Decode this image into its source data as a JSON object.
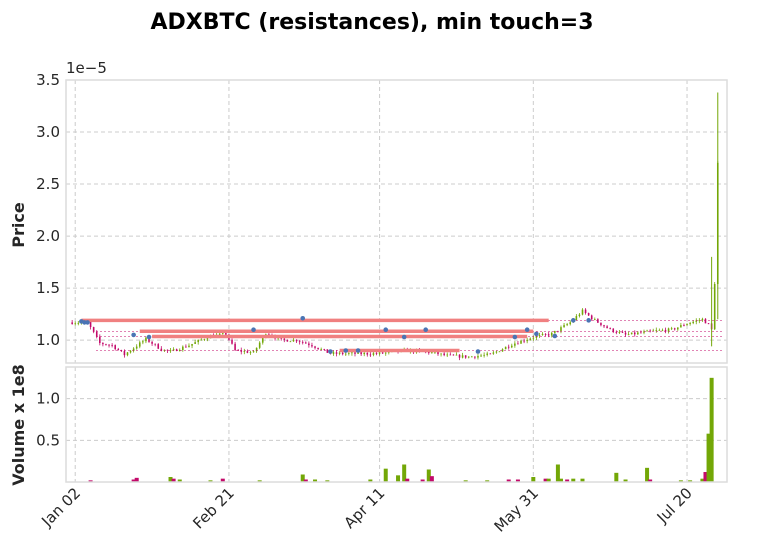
{
  "chart_data": {
    "type": "candlestick",
    "title": "ADXBTC (resistances), min touch=3",
    "price_panel": {
      "ylabel": "Price",
      "offset_label": "1e−5",
      "ylim": [
        0.78,
        3.5
      ],
      "yticks": [
        1.0,
        1.5,
        2.0,
        2.5,
        3.0,
        3.5
      ],
      "ytick_labels": [
        "1.0",
        "1.5",
        "2.0",
        "2.5",
        "3.0",
        "3.5"
      ],
      "unit_scale": "1e-5 BTC",
      "grid": true
    },
    "volume_panel": {
      "ylabel": "Volume x 1e8",
      "ylim": [
        0,
        1.38
      ],
      "yticks": [
        0.5,
        1.0
      ],
      "ytick_labels": [
        "0.5",
        "1.0"
      ]
    },
    "x_axis": {
      "start_date": "2018-12-30",
      "end_date": "2019-08-02",
      "tick_dates": [
        "2019-01-02",
        "2019-02-21",
        "2019-04-11",
        "2019-05-31",
        "2019-07-20"
      ],
      "tick_labels": [
        "Jan 02",
        "Feb 21",
        "Apr 11",
        "May 31",
        "Jul 20"
      ]
    },
    "colors": {
      "up": "#73a707",
      "down": "#c30a6a",
      "resistance": "#f08080",
      "touch_marker": "#4a74b4",
      "grid": "#cccccc"
    },
    "resistance_lines": [
      {
        "start": "2019-01-04",
        "end": "2019-06-05",
        "level": 1.19
      },
      {
        "start": "2019-01-23",
        "end": "2019-05-31",
        "level": 1.085
      },
      {
        "start": "2019-01-27",
        "end": "2019-05-29",
        "level": 1.035
      },
      {
        "start": "2019-03-29",
        "end": "2019-05-07",
        "level": 0.9
      }
    ],
    "touch_points": [
      {
        "date": "2019-01-04",
        "price": 1.18
      },
      {
        "date": "2019-01-05",
        "price": 1.17
      },
      {
        "date": "2019-01-06",
        "price": 1.17
      },
      {
        "date": "2019-01-21",
        "price": 1.05
      },
      {
        "date": "2019-01-26",
        "price": 1.03
      },
      {
        "date": "2019-03-01",
        "price": 1.1
      },
      {
        "date": "2019-03-17",
        "price": 1.21
      },
      {
        "date": "2019-03-26",
        "price": 0.89
      },
      {
        "date": "2019-03-31",
        "price": 0.9
      },
      {
        "date": "2019-04-04",
        "price": 0.9
      },
      {
        "date": "2019-04-13",
        "price": 1.1
      },
      {
        "date": "2019-04-19",
        "price": 1.03
      },
      {
        "date": "2019-04-26",
        "price": 1.1
      },
      {
        "date": "2019-05-13",
        "price": 0.89
      },
      {
        "date": "2019-05-25",
        "price": 1.03
      },
      {
        "date": "2019-05-29",
        "price": 1.1
      },
      {
        "date": "2019-06-01",
        "price": 1.06
      },
      {
        "date": "2019-06-07",
        "price": 1.04
      },
      {
        "date": "2019-06-13",
        "price": 1.19
      },
      {
        "date": "2019-06-18",
        "price": 1.19
      }
    ],
    "price_path": [
      [
        "2019-01-01",
        1.17
      ],
      [
        "2019-01-06",
        1.17
      ],
      [
        "2019-01-10",
        0.97
      ],
      [
        "2019-01-14",
        0.95
      ],
      [
        "2019-01-18",
        0.86
      ],
      [
        "2019-01-25",
        1.01
      ],
      [
        "2019-01-30",
        0.91
      ],
      [
        "2019-02-02",
        0.89
      ],
      [
        "2019-02-08",
        0.95
      ],
      [
        "2019-02-14",
        1.03
      ],
      [
        "2019-02-20",
        1.06
      ],
      [
        "2019-02-23",
        0.9
      ],
      [
        "2019-03-01",
        0.88
      ],
      [
        "2019-03-05",
        1.07
      ],
      [
        "2019-03-10",
        1.0
      ],
      [
        "2019-03-15",
        1.0
      ],
      [
        "2019-03-20",
        0.95
      ],
      [
        "2019-03-26",
        0.87
      ],
      [
        "2019-04-04",
        0.87
      ],
      [
        "2019-04-11",
        0.87
      ],
      [
        "2019-04-20",
        0.9
      ],
      [
        "2019-04-28",
        0.88
      ],
      [
        "2019-05-03",
        0.85
      ],
      [
        "2019-05-10",
        0.84
      ],
      [
        "2019-05-17",
        0.86
      ],
      [
        "2019-05-24",
        0.96
      ],
      [
        "2019-05-31",
        1.03
      ],
      [
        "2019-06-06",
        1.06
      ],
      [
        "2019-06-12",
        1.17
      ],
      [
        "2019-06-16",
        1.28
      ],
      [
        "2019-06-20",
        1.19
      ],
      [
        "2019-06-25",
        1.1
      ],
      [
        "2019-06-30",
        1.05
      ],
      [
        "2019-07-05",
        1.07
      ],
      [
        "2019-07-10",
        1.09
      ],
      [
        "2019-07-15",
        1.1
      ],
      [
        "2019-07-20",
        1.16
      ],
      [
        "2019-07-25",
        1.2
      ],
      [
        "2019-07-27",
        1.15
      ],
      [
        "2019-07-28",
        1.1
      ],
      [
        "2019-07-29",
        1.55
      ],
      [
        "2019-07-30",
        2.7
      ]
    ],
    "price_spikes": [
      {
        "date": "2019-07-28",
        "low": 0.94,
        "high": 1.8
      },
      {
        "date": "2019-07-30",
        "low": 1.2,
        "high": 3.38
      }
    ],
    "volume_bars": [
      {
        "date": "2019-01-07",
        "value": 0.02,
        "dir": "down"
      },
      {
        "date": "2019-01-21",
        "value": 0.03,
        "dir": "down"
      },
      {
        "date": "2019-01-22",
        "value": 0.05,
        "dir": "down"
      },
      {
        "date": "2019-02-02",
        "value": 0.06,
        "dir": "up"
      },
      {
        "date": "2019-02-03",
        "value": 0.04,
        "dir": "down"
      },
      {
        "date": "2019-02-05",
        "value": 0.03,
        "dir": "up"
      },
      {
        "date": "2019-02-15",
        "value": 0.02,
        "dir": "up"
      },
      {
        "date": "2019-02-19",
        "value": 0.04,
        "dir": "down"
      },
      {
        "date": "2019-03-03",
        "value": 0.02,
        "dir": "up"
      },
      {
        "date": "2019-03-17",
        "value": 0.09,
        "dir": "up"
      },
      {
        "date": "2019-03-18",
        "value": 0.03,
        "dir": "down"
      },
      {
        "date": "2019-03-21",
        "value": 0.03,
        "dir": "up"
      },
      {
        "date": "2019-03-25",
        "value": 0.02,
        "dir": "up"
      },
      {
        "date": "2019-04-08",
        "value": 0.03,
        "dir": "up"
      },
      {
        "date": "2019-04-13",
        "value": 0.16,
        "dir": "up"
      },
      {
        "date": "2019-04-17",
        "value": 0.08,
        "dir": "up"
      },
      {
        "date": "2019-04-19",
        "value": 0.21,
        "dir": "up"
      },
      {
        "date": "2019-04-20",
        "value": 0.04,
        "dir": "down"
      },
      {
        "date": "2019-04-25",
        "value": 0.03,
        "dir": "down"
      },
      {
        "date": "2019-04-27",
        "value": 0.15,
        "dir": "up"
      },
      {
        "date": "2019-04-28",
        "value": 0.07,
        "dir": "down"
      },
      {
        "date": "2019-05-09",
        "value": 0.02,
        "dir": "up"
      },
      {
        "date": "2019-05-16",
        "value": 0.02,
        "dir": "up"
      },
      {
        "date": "2019-05-23",
        "value": 0.03,
        "dir": "down"
      },
      {
        "date": "2019-05-26",
        "value": 0.03,
        "dir": "down"
      },
      {
        "date": "2019-05-31",
        "value": 0.06,
        "dir": "up"
      },
      {
        "date": "2019-06-04",
        "value": 0.04,
        "dir": "down"
      },
      {
        "date": "2019-06-05",
        "value": 0.04,
        "dir": "up"
      },
      {
        "date": "2019-06-08",
        "value": 0.21,
        "dir": "up"
      },
      {
        "date": "2019-06-09",
        "value": 0.04,
        "dir": "up"
      },
      {
        "date": "2019-06-11",
        "value": 0.03,
        "dir": "down"
      },
      {
        "date": "2019-06-13",
        "value": 0.04,
        "dir": "up"
      },
      {
        "date": "2019-06-16",
        "value": 0.04,
        "dir": "up"
      },
      {
        "date": "2019-06-27",
        "value": 0.11,
        "dir": "up"
      },
      {
        "date": "2019-06-30",
        "value": 0.03,
        "dir": "up"
      },
      {
        "date": "2019-07-07",
        "value": 0.17,
        "dir": "up"
      },
      {
        "date": "2019-07-08",
        "value": 0.03,
        "dir": "down"
      },
      {
        "date": "2019-07-18",
        "value": 0.02,
        "dir": "up"
      },
      {
        "date": "2019-07-21",
        "value": 0.02,
        "dir": "up"
      },
      {
        "date": "2019-07-25",
        "value": 0.04,
        "dir": "up"
      },
      {
        "date": "2019-07-26",
        "value": 0.12,
        "dir": "down"
      },
      {
        "date": "2019-07-27",
        "value": 0.58,
        "dir": "up"
      },
      {
        "date": "2019-07-28",
        "value": 1.25,
        "dir": "up"
      }
    ]
  }
}
